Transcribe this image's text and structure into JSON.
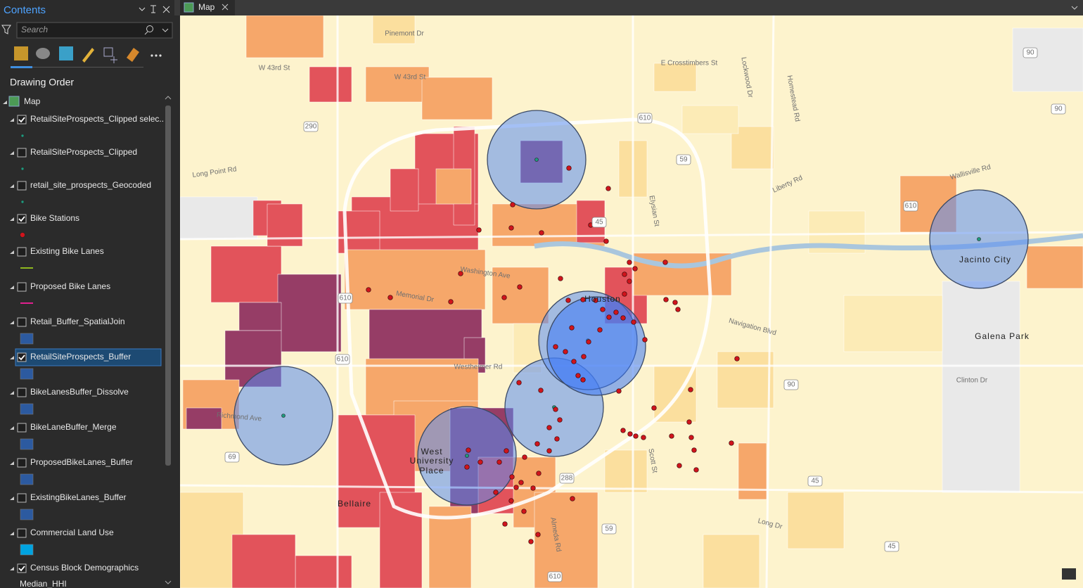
{
  "contents": {
    "title": "Contents",
    "search_placeholder": "Search",
    "section": "Drawing Order",
    "map_name": "Map",
    "layers": [
      {
        "name": "RetailSiteProspects_Clipped selec...",
        "checked": true,
        "symbol": "point",
        "color": "#1f9a7e"
      },
      {
        "name": "RetailSiteProspects_Clipped",
        "checked": false,
        "symbol": "point",
        "color": "#1f9a7e"
      },
      {
        "name": "retail_site_prospects_Geocoded",
        "checked": false,
        "symbol": "point",
        "color": "#1f9a7e"
      },
      {
        "name": "Bike Stations",
        "checked": true,
        "symbol": "point",
        "color": "#d0141c"
      },
      {
        "name": "Existing Bike Lanes",
        "checked": false,
        "symbol": "line",
        "color": "#8fb81e"
      },
      {
        "name": "Proposed Bike Lanes",
        "checked": false,
        "symbol": "line",
        "color": "#e0208f"
      },
      {
        "name": "Retail_Buffer_SpatialJoin",
        "checked": false,
        "symbol": "fill",
        "color": "#2c5aa0"
      },
      {
        "name": "RetailSiteProspects_Buffer",
        "checked": true,
        "symbol": "fill",
        "color": "#2c5aa0",
        "selected": true
      },
      {
        "name": "BikeLanesBuffer_Dissolve",
        "checked": false,
        "symbol": "fill",
        "color": "#2c5aa0"
      },
      {
        "name": "BikeLaneBuffer_Merge",
        "checked": false,
        "symbol": "fill",
        "color": "#2c5aa0"
      },
      {
        "name": "ProposedBikeLanes_Buffer",
        "checked": false,
        "symbol": "fill",
        "color": "#2c5aa0"
      },
      {
        "name": "ExistingBikeLanes_Buffer",
        "checked": false,
        "symbol": "fill",
        "color": "#2c5aa0"
      },
      {
        "name": "Commercial Land Use",
        "checked": false,
        "symbol": "fill",
        "color": "#00a3e0"
      },
      {
        "name": "Census Block Demographics",
        "checked": true,
        "symbol": "none",
        "color": "#000000"
      }
    ],
    "footer_label": "Median_HHI"
  },
  "map": {
    "tab": "Map",
    "labels": [
      "Pinemont Dr",
      "W 43rd St",
      "W 43rd St",
      "E Crosstimbers St",
      "Long Point Rd",
      "Liberty Rd",
      "Washington Ave",
      "Memorial Dr",
      "Houston",
      "Navigation Blvd",
      "Westheimer Rd",
      "Clinton Dr",
      "Galena Park",
      "Jacinto City",
      "West",
      "University",
      "Place",
      "Bellaire",
      "Richmond Ave",
      "Long Dr",
      "Almeda Rd",
      "Scott St",
      "Elysian St",
      "Lockwood Dr",
      "Homestead Rd",
      "Wallisville Rd"
    ],
    "shields": [
      "90",
      "90",
      "610",
      "59",
      "45",
      "610",
      "610",
      "610",
      "90",
      "69",
      "288",
      "45",
      "45",
      "610",
      "290",
      "59"
    ]
  }
}
